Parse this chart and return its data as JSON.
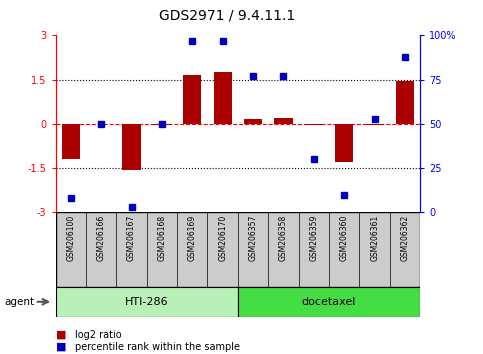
{
  "title": "GDS2971 / 9.4.11.1",
  "samples": [
    "GSM206100",
    "GSM206166",
    "GSM206167",
    "GSM206168",
    "GSM206169",
    "GSM206170",
    "GSM206357",
    "GSM206358",
    "GSM206359",
    "GSM206360",
    "GSM206361",
    "GSM206362"
  ],
  "log2_ratio": [
    -1.2,
    0.0,
    -1.55,
    -0.05,
    1.65,
    1.75,
    0.15,
    0.2,
    -0.05,
    -1.3,
    -0.05,
    1.45
  ],
  "percentile_rank": [
    8,
    50,
    3,
    50,
    97,
    97,
    77,
    77,
    30,
    10,
    53,
    88
  ],
  "groups": [
    {
      "label": "HTI-286",
      "start": 0,
      "end": 5,
      "color": "#b8f0b8"
    },
    {
      "label": "docetaxel",
      "start": 6,
      "end": 11,
      "color": "#44dd44"
    }
  ],
  "bar_color": "#aa0000",
  "dot_color": "#0000bb",
  "ylim_left": [
    -3,
    3
  ],
  "ylim_right": [
    0,
    100
  ],
  "yticks_left": [
    -3,
    -1.5,
    0,
    1.5,
    3
  ],
  "ytick_labels_left": [
    "-3",
    "-1.5",
    "0",
    "1.5",
    "3"
  ],
  "yticks_right": [
    0,
    25,
    50,
    75,
    100
  ],
  "ytick_labels_right": [
    "0",
    "25",
    "50",
    "75",
    "100%"
  ],
  "hlines": [
    -1.5,
    0,
    1.5
  ],
  "hline_styles": [
    "dotted",
    "dashed",
    "dotted"
  ],
  "hline_colors": [
    "black",
    "red",
    "black"
  ],
  "legend_bar_label": "log2 ratio",
  "legend_dot_label": "percentile rank within the sample",
  "agent_label": "agent",
  "background_color": "#ffffff",
  "box_color": "#cccccc"
}
